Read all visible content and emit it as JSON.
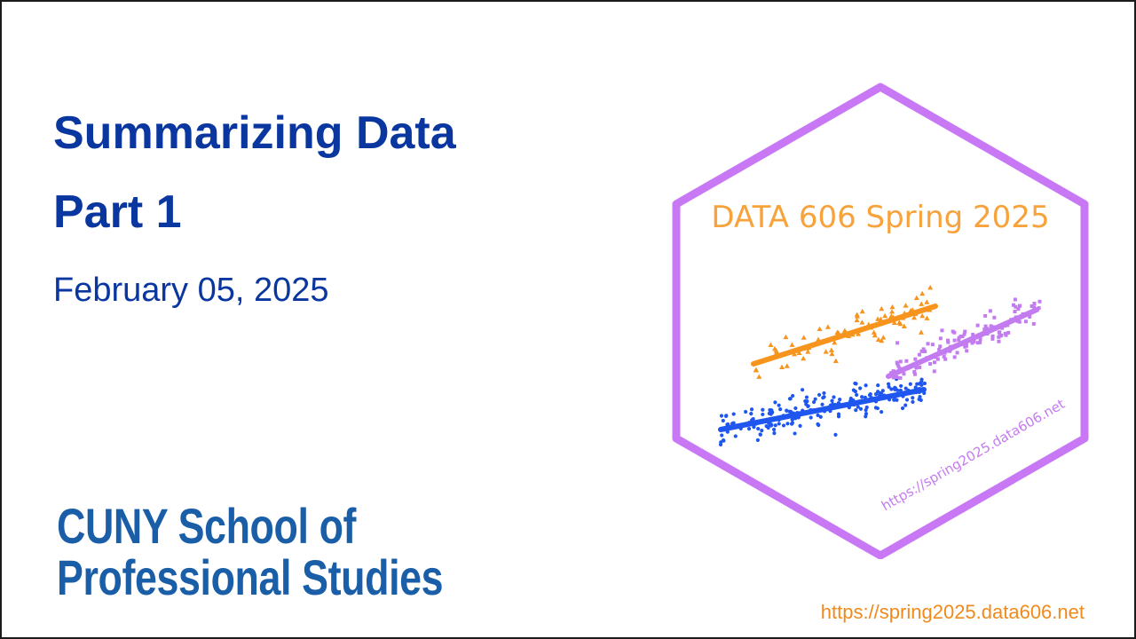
{
  "slide": {
    "title": "Summarizing Data",
    "subtitle": "Part 1",
    "date": "February 05, 2025",
    "school_line1": "CUNY School of",
    "school_line2": "Professional Studies",
    "footer_url": "https://spring2025.data606.net"
  },
  "logo": {
    "heading": "DATA 606 Spring 2025",
    "url": "https://spring2025.data606.net",
    "colors": {
      "hex_border": "#c978f5",
      "heading": "#f7a23a",
      "orange_series": "#f7941d",
      "blue_series": "#1f56f0",
      "purple_series": "#c37cf0"
    }
  }
}
